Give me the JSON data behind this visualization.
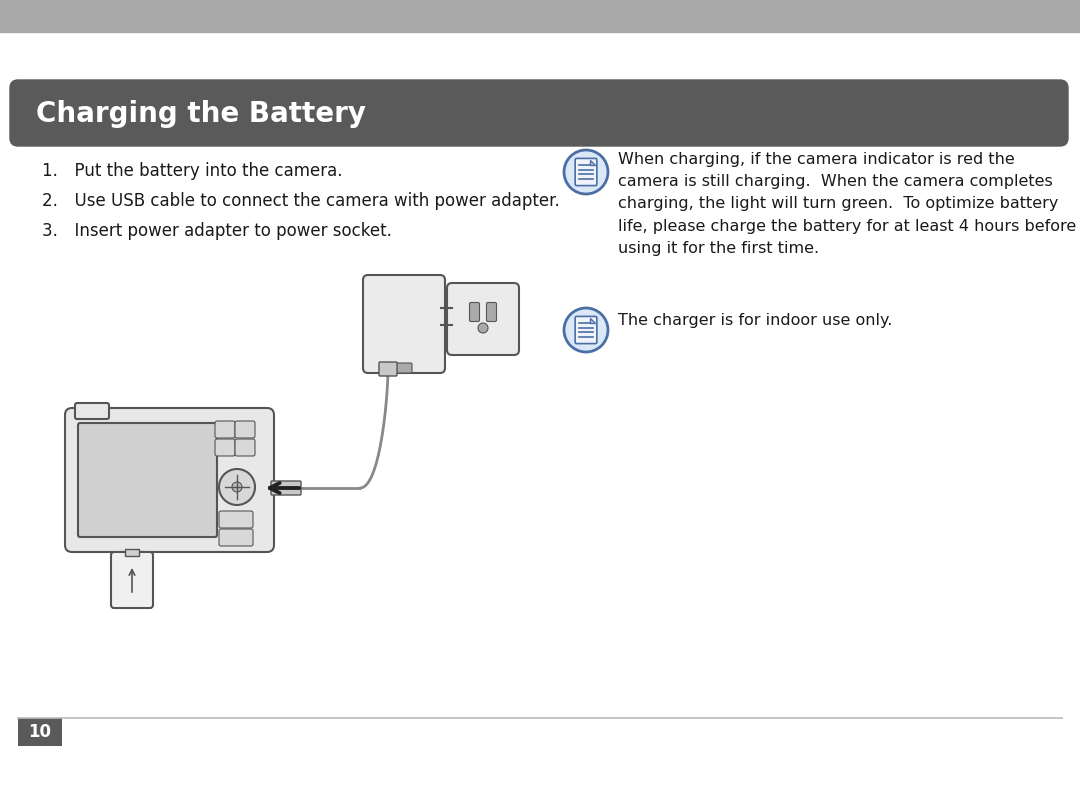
{
  "title": "Charging the Battery",
  "title_bg_color": "#5a5a5a",
  "title_text_color": "#ffffff",
  "page_bg_color": "#ffffff",
  "top_bar_color": "#a8a8a8",
  "steps": [
    "Put the battery into the camera.",
    "Use USB cable to connect the camera with power adapter.",
    "Insert power adapter to power socket."
  ],
  "note1_text": "When charging, if the camera indicator is red the\ncamera is still charging.  When the camera completes\ncharging, the light will turn green.  To optimize battery\nlife, please charge the battery for at least 4 hours before\nusing it for the first time.",
  "note2_text": "The charger is for indoor use only.",
  "page_number": "10",
  "footer_line_color": "#bbbbbb",
  "footer_bg_color": "#5a5a5a",
  "font_color": "#1a1a1a",
  "icon_border_color": "#4a6fa5",
  "icon_fill_color": "#dce8f8",
  "icon_line_color": "#4a6fa5"
}
